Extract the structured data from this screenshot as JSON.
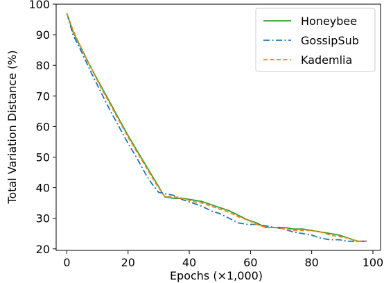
{
  "chart_data": {
    "type": "line",
    "title": "",
    "xlabel": "Epochs (×1,000)",
    "ylabel": "Total Variation Distance (%)",
    "xlim": [
      -3.5,
      102.5
    ],
    "ylim": [
      19.5,
      100
    ],
    "xticks": [
      0,
      20,
      40,
      60,
      80,
      100
    ],
    "xtick_labels": [
      "0",
      "20",
      "40",
      "60",
      "80",
      "100"
    ],
    "yticks": [
      20,
      30,
      40,
      50,
      60,
      70,
      80,
      90,
      100
    ],
    "ytick_labels": [
      "20",
      "30",
      "40",
      "50",
      "60",
      "70",
      "80",
      "90",
      "100"
    ],
    "grid": false,
    "legend_position": "top-right",
    "series": [
      {
        "name": "Honeybee",
        "color": "#2ca02c",
        "style": "solid",
        "x": [
          0,
          2,
          5,
          8,
          11,
          14,
          17,
          20,
          23,
          26,
          29,
          32,
          35,
          38,
          41,
          44,
          47,
          50,
          53,
          56,
          59,
          62,
          65,
          68,
          71,
          74,
          77,
          80,
          83,
          86,
          89,
          92,
          95,
          98
        ],
        "y": [
          97,
          91,
          85,
          79,
          73.5,
          68,
          62.5,
          57,
          52,
          47,
          42,
          37,
          36.5,
          36.5,
          36,
          35.5,
          34.5,
          33.5,
          32.5,
          31,
          29.5,
          28.5,
          27,
          27,
          27,
          26.5,
          26.5,
          26,
          25.5,
          25,
          24.5,
          23.5,
          22.5,
          22.5
        ]
      },
      {
        "name": "GossipSub",
        "color": "#1f77b4",
        "style": "dashdot",
        "x": [
          0,
          2,
          5,
          8,
          11,
          14,
          17,
          20,
          23,
          26,
          28,
          30,
          32,
          35,
          38,
          41,
          44,
          47,
          50,
          53,
          56,
          59,
          62,
          65,
          68,
          71,
          74,
          77,
          80,
          83,
          86,
          89,
          92,
          95,
          98
        ],
        "y": [
          97,
          90,
          84,
          77.5,
          71.5,
          65.5,
          60,
          54.5,
          49.5,
          44,
          41,
          38.5,
          38,
          37.5,
          36,
          35,
          34,
          32.5,
          31.5,
          30,
          28.5,
          28,
          28,
          27.5,
          27,
          26.5,
          25.5,
          25,
          24.5,
          23.5,
          23,
          23,
          22.5,
          22.5,
          22.5
        ]
      },
      {
        "name": "Kademlia",
        "color": "#ff7f0e",
        "style": "dashed",
        "x": [
          0,
          2,
          5,
          8,
          11,
          14,
          17,
          20,
          23,
          26,
          29,
          32,
          35,
          38,
          41,
          44,
          47,
          50,
          53,
          56,
          59,
          62,
          65,
          68,
          71,
          74,
          77,
          80,
          83,
          86,
          89,
          92,
          95,
          98
        ],
        "y": [
          97,
          91.5,
          85,
          79,
          73,
          67.5,
          62,
          56.5,
          51.5,
          46.5,
          41.5,
          37,
          37,
          36.5,
          35.5,
          35,
          34,
          33,
          32,
          30.5,
          29.5,
          28,
          27,
          27,
          26.5,
          26,
          26,
          26,
          25.5,
          24.5,
          24,
          23.5,
          22.5,
          22.5
        ]
      }
    ]
  }
}
